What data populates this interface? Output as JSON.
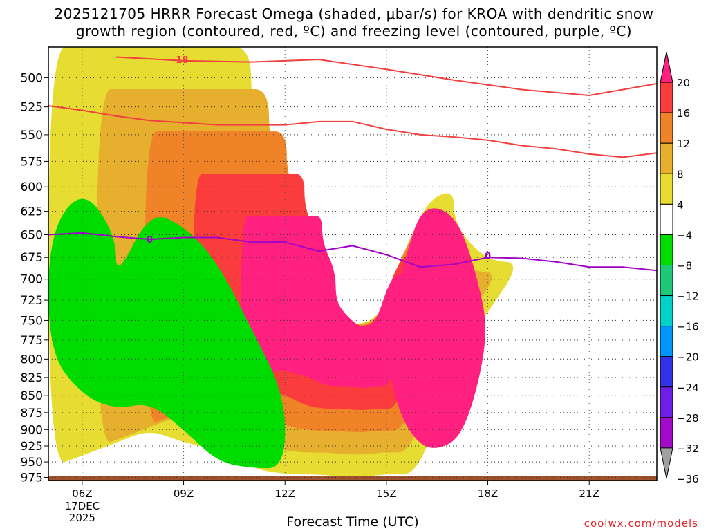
{
  "title_line1": "2025121705 HRRR Forecast Omega (shaded, μbar/s) for KROA with dendritic snow",
  "title_line2": "growth region (contoured, red, ºC) and freezing level (contoured, purple, ºC)",
  "credit": "coolwx.com/models",
  "chart_data": {
    "type": "contour",
    "title": "2025121705 HRRR Forecast Omega (shaded, μbar/s) for KROA with dendritic snow growth region (contoured, red, ºC) and freezing level (contoured, purple, ºC)",
    "xlabel": "Forecast Time (UTC)",
    "ylabel": "",
    "x_tick_labels": [
      "06Z",
      "09Z",
      "12Z",
      "15Z",
      "18Z",
      "21Z"
    ],
    "x_tick_hours": [
      6,
      9,
      12,
      15,
      18,
      21
    ],
    "x_date_label": [
      "17DEC",
      "2025"
    ],
    "xlim_hours": [
      5,
      23
    ],
    "y_ticks_hpa": [
      500,
      525,
      550,
      575,
      600,
      625,
      650,
      675,
      700,
      725,
      750,
      775,
      800,
      825,
      850,
      875,
      900,
      925,
      950,
      975
    ],
    "ylim_hpa": [
      475,
      980
    ],
    "y_log_pressure": true,
    "grid": true,
    "colorbar": {
      "labels": [
        "20",
        "16",
        "12",
        "8",
        "4",
        "−4",
        "−8",
        "−12",
        "−16",
        "−20",
        "−24",
        "−28",
        "−32",
        "−36"
      ],
      "bands": [
        {
          "range": "16 to 20",
          "color": "#ff2080"
        },
        {
          "range": "12 to 16",
          "color": "#fa3c3c"
        },
        {
          "range": "8 to 12",
          "color": "#f08228"
        },
        {
          "range": "4 to 8",
          "color": "#e6af2d"
        },
        {
          "range": "0 to 4",
          "color": "#e6dc32"
        },
        {
          "range": "-4 to 0",
          "color": "#ffffff"
        },
        {
          "range": "-8 to -4",
          "color": "#00dc00"
        },
        {
          "range": "-12 to -8",
          "color": "#1ec878"
        },
        {
          "range": "-16 to -12",
          "color": "#00d2c8"
        },
        {
          "range": "-20 to -16",
          "color": "#0096ff"
        },
        {
          "range": "-24 to -20",
          "color": "#3232e6"
        },
        {
          "range": "-28 to -24",
          "color": "#6e1ee6"
        },
        {
          "range": "-32 to -28",
          "color": "#a00ac8"
        },
        {
          "range": "-36 to -32",
          "color": "#a0a0a0"
        }
      ]
    },
    "contour_labels": [
      {
        "text": "-18",
        "color": "#f04040",
        "hour": 8.9,
        "hpa": 485
      },
      {
        "text": "0",
        "color": "#a000c8",
        "hour": 8.0,
        "hpa": 655
      },
      {
        "text": "0",
        "color": "#a000c8",
        "hour": 18.0,
        "hpa": 673
      }
    ],
    "freezing_level_0C_hpa": {
      "hours": [
        5,
        6,
        7,
        8,
        9,
        10,
        11,
        12,
        13,
        14,
        15,
        16,
        17,
        18,
        19,
        20,
        21,
        22,
        23
      ],
      "values": [
        650,
        648,
        652,
        655,
        653,
        653,
        658,
        658,
        668,
        662,
        672,
        686,
        683,
        675,
        676,
        680,
        686,
        686,
        690
      ]
    },
    "dgz_m18C_hpa": {
      "hours": [
        7,
        9,
        11,
        12,
        13,
        15,
        17,
        19,
        21,
        23
      ],
      "values": [
        483,
        486,
        487,
        486,
        485,
        493,
        502,
        510,
        515,
        505
      ]
    },
    "dgz_m12C_hpa": {
      "hours": [
        5,
        6,
        7,
        8,
        9,
        10,
        11,
        12,
        13,
        14,
        15,
        16,
        17,
        18,
        19,
        20,
        21,
        22,
        23
      ],
      "values": [
        524,
        528,
        533,
        537,
        539,
        541,
        541,
        541,
        538,
        538,
        545,
        550,
        552,
        555,
        560,
        563,
        568,
        571,
        567
      ]
    },
    "omega_regions": [
      {
        "band": "0 to 4",
        "level": 1,
        "hours": [
          5,
          6,
          7,
          8,
          9,
          10,
          11,
          11,
          12,
          12,
          13,
          14,
          15,
          16,
          17,
          17,
          18,
          19,
          18,
          17,
          16,
          15,
          15,
          14,
          13,
          12,
          11,
          10,
          9,
          8,
          7,
          6,
          5
        ],
        "hpa": [
          475,
          475,
          475,
          475,
          475,
          475,
          475,
          530,
          600,
          680,
          730,
          760,
          740,
          620,
          600,
          640,
          680,
          680,
          740,
          800,
          970,
          970,
          970,
          975,
          970,
          970,
          960,
          930,
          920,
          900,
          920,
          940,
          960
        ]
      },
      {
        "band": "16 to 20",
        "level": 5,
        "hours": [
          16,
          16.6,
          17.2,
          17.7,
          18,
          17.7,
          17.2,
          16.6,
          16,
          15.4,
          15,
          15.2,
          15.6
        ],
        "hpa": [
          625,
          620,
          640,
          700,
          760,
          840,
          910,
          930,
          925,
          880,
          800,
          730,
          670
        ]
      },
      {
        "band": "-8 to -4",
        "level": 6,
        "hours": [
          5,
          6,
          7,
          7,
          8,
          9,
          10,
          11,
          12,
          12,
          11,
          10,
          9,
          8,
          7,
          6,
          5
        ],
        "hpa": [
          650,
          600,
          650,
          700,
          625,
          640,
          680,
          760,
          850,
          960,
          960,
          950,
          900,
          860,
          870,
          850,
          790
        ]
      }
    ]
  }
}
